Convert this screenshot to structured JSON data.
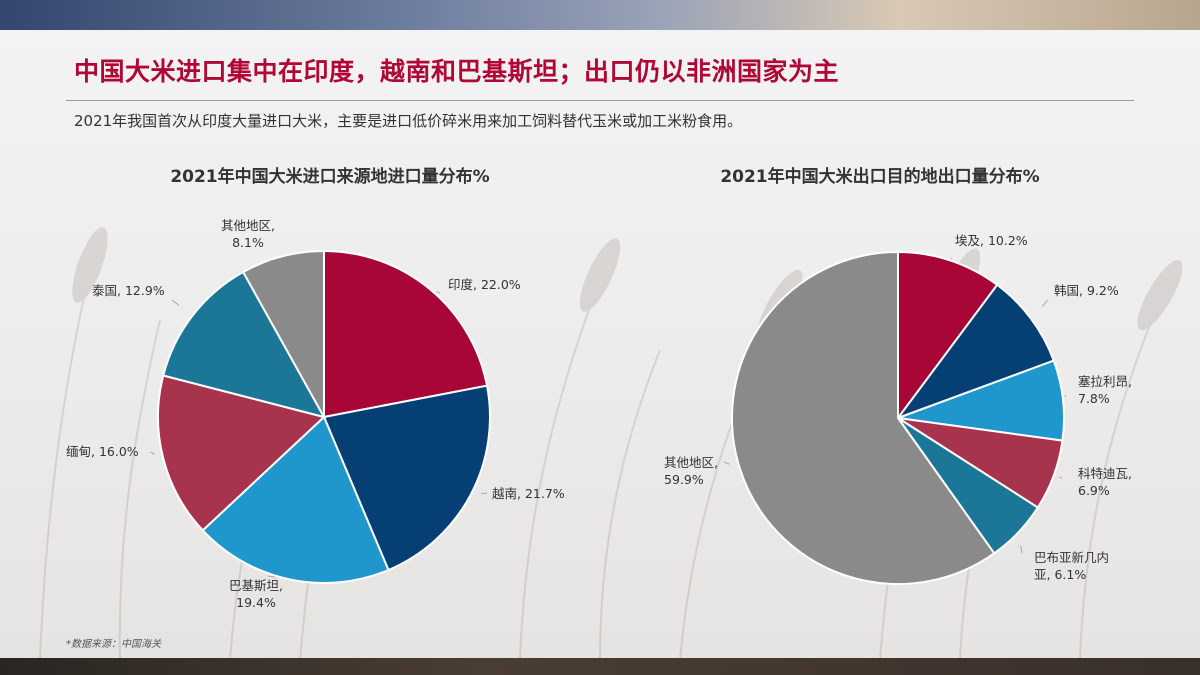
{
  "headline": "中国大米进口集中在印度，越南和巴基斯坦；出口仍以非洲国家为主",
  "subline": "2021年我国首次从印度大量进口大米，主要是进口低价碎米用来加工饲料替代玉米或加工米粉食用。",
  "footnote": "*数据来源：中国海关",
  "chart_data": [
    {
      "type": "pie",
      "title": "2021年中国大米进口来源地进口量分布%",
      "slices": [
        {
          "label": "印度",
          "value": 22.0,
          "color": "#a70637",
          "text": [
            "印度, 22.0%"
          ]
        },
        {
          "label": "越南",
          "value": 21.7,
          "color": "#063f73",
          "text": [
            "越南, 21.7%"
          ]
        },
        {
          "label": "巴基斯坦",
          "value": 19.4,
          "color": "#1f97cc",
          "text": [
            "巴基斯坦,",
            "19.4%"
          ]
        },
        {
          "label": "缅甸",
          "value": 16.0,
          "color": "#a8334d",
          "text": [
            "缅甸, 16.0%"
          ]
        },
        {
          "label": "泰国",
          "value": 12.9,
          "color": "#1b7698",
          "text": [
            "泰国, 12.9%"
          ]
        },
        {
          "label": "其他地区",
          "value": 8.1,
          "color": "#8a8a8a",
          "text": [
            "其他地区,",
            "8.1%"
          ]
        }
      ]
    },
    {
      "type": "pie",
      "title": "2021年中国大米出口目的地出口量分布%",
      "slices": [
        {
          "label": "埃及",
          "value": 10.2,
          "color": "#a70637",
          "text": [
            "埃及, 10.2%"
          ]
        },
        {
          "label": "韩国",
          "value": 9.2,
          "color": "#063f73",
          "text": [
            "韩国, 9.2%"
          ]
        },
        {
          "label": "塞拉利昂",
          "value": 7.8,
          "color": "#1f97cc",
          "text": [
            "塞拉利昂,",
            "7.8%"
          ]
        },
        {
          "label": "科特迪瓦",
          "value": 6.9,
          "color": "#a8334d",
          "text": [
            "科特迪瓦,",
            "6.9%"
          ]
        },
        {
          "label": "巴布亚新几内亚",
          "value": 6.1,
          "color": "#1b7698",
          "text": [
            "巴布亚新几内",
            "亚, 6.1%"
          ]
        },
        {
          "label": "其他地区",
          "value": 59.9,
          "color": "#8a8a8a",
          "text": [
            "其他地区,",
            "59.9%"
          ]
        }
      ]
    }
  ]
}
